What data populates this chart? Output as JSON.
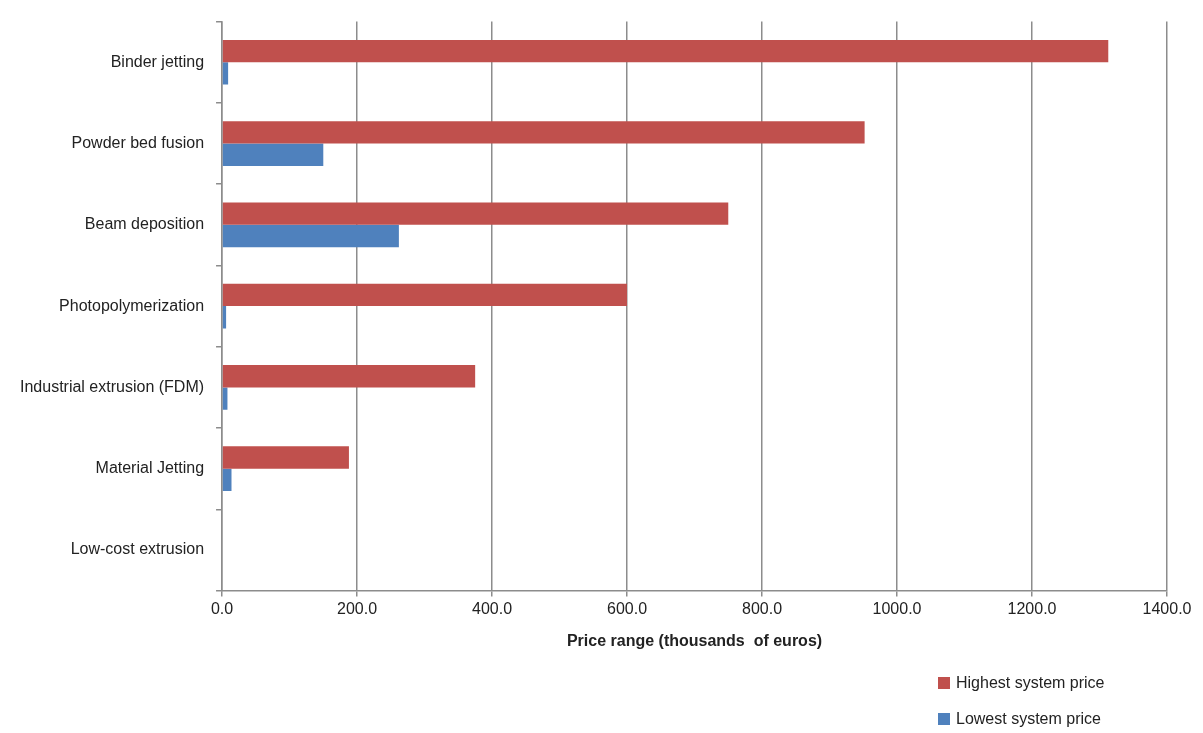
{
  "chart_data": {
    "type": "bar",
    "orientation": "horizontal",
    "xlabel": "Price range (thousands  of euros)",
    "categories": [
      "Binder jetting",
      "Powder bed fusion",
      "Beam deposition",
      "Photopolymerization",
      "Industrial extrusion (FDM)",
      "Material Jetting",
      "Low-cost extrusion"
    ],
    "series": [
      {
        "name": "Highest system price",
        "color": "#c0504d",
        "values": [
          1313,
          952,
          750,
          600,
          375,
          188,
          0
        ]
      },
      {
        "name": "Lowest system price",
        "color": "#4f81bd",
        "values": [
          9,
          150,
          262,
          6,
          8,
          14,
          0
        ]
      }
    ],
    "xlim": [
      0,
      1400
    ],
    "xticks": [
      {
        "value": 0,
        "label": "0.0"
      },
      {
        "value": 200,
        "label": "200.0"
      },
      {
        "value": 400,
        "label": "400.0"
      },
      {
        "value": 600,
        "label": "600.0"
      },
      {
        "value": 800,
        "label": "800.0"
      },
      {
        "value": 1000,
        "label": "1000.0"
      },
      {
        "value": 1200,
        "label": "1200.0"
      },
      {
        "value": 1400,
        "label": "1400.0"
      }
    ],
    "grid": "x",
    "legend": "bottom right"
  }
}
